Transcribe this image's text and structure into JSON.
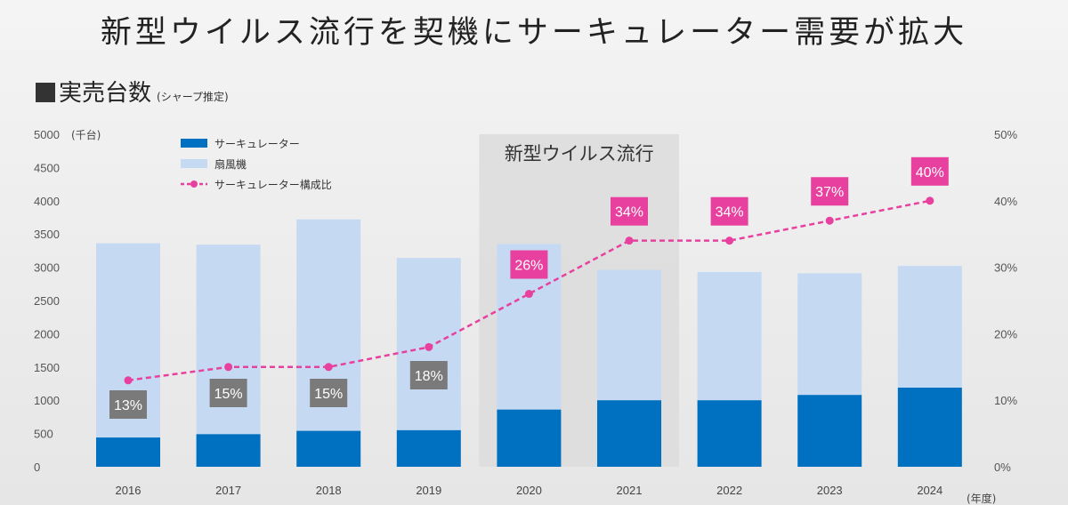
{
  "headline": "新型ウイルス流行を契機にサーキュレーター需要が拡大",
  "section": {
    "title": "実売台数",
    "note": "(シャープ推定)"
  },
  "chart_data": {
    "type": "bar",
    "stacked": true,
    "categories": [
      "2016",
      "2017",
      "2018",
      "2019",
      "2020",
      "2021",
      "2022",
      "2023",
      "2024"
    ],
    "xlabel": "(年度)",
    "ylabel": "(千台)",
    "ylim": [
      0,
      5000
    ],
    "yticks": [
      0,
      500,
      1000,
      1500,
      2000,
      2500,
      3000,
      3500,
      4000,
      4500,
      5000
    ],
    "y2lim": [
      0,
      50
    ],
    "y2ticks": [
      "0%",
      "10%",
      "20%",
      "30%",
      "40%",
      "50%"
    ],
    "series": [
      {
        "name": "サーキュレーター",
        "type": "bar",
        "color": "#0070c0",
        "values": [
          440,
          490,
          540,
          550,
          860,
          1000,
          1000,
          1080,
          1190
        ]
      },
      {
        "name": "扇風機",
        "type": "bar",
        "color": "#c5daf2",
        "values": [
          2920,
          2850,
          3180,
          2590,
          2490,
          1960,
          1930,
          1830,
          1830
        ]
      },
      {
        "name": "サーキュレーター構成比",
        "type": "line",
        "axis": "right",
        "color": "#e8409e",
        "values": [
          13,
          15,
          15,
          18,
          26,
          34,
          34,
          37,
          40
        ],
        "labels": [
          "13%",
          "15%",
          "15%",
          "18%",
          "26%",
          "34%",
          "34%",
          "37%",
          "40%"
        ]
      }
    ],
    "highlight": {
      "label": "新型ウイルス流行",
      "from": "2020",
      "to": "2021"
    },
    "label_colors": {
      "pre": "#7a7a7a",
      "post": "#e8409e"
    },
    "grid": false,
    "legend": "top-left"
  }
}
